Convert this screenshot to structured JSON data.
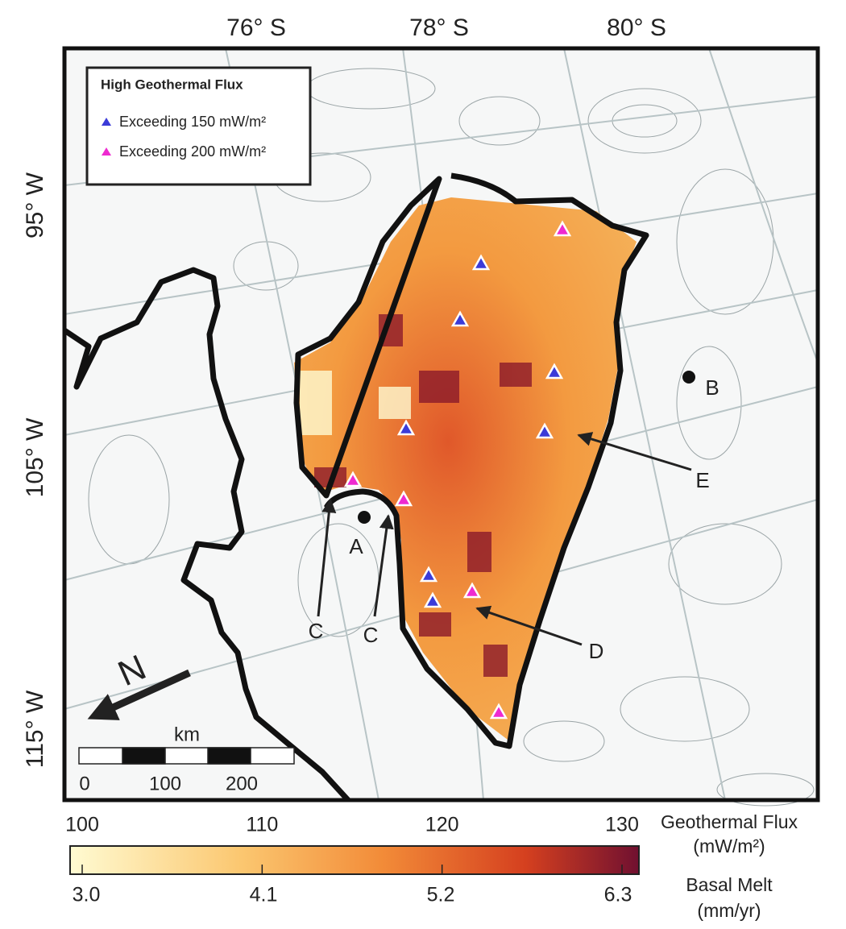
{
  "graticule": {
    "latitudes": [
      "76° S",
      "78° S",
      "80° S"
    ],
    "longitudes": [
      "95° W",
      "105° W",
      "115° W"
    ]
  },
  "legend": {
    "title": "High Geothermal Flux",
    "items": [
      "Exceeding 150 mW/m²",
      "Exceeding 200 mW/m²"
    ]
  },
  "labels": [
    "A",
    "B",
    "C",
    "C",
    "D",
    "E"
  ],
  "north": "N",
  "scale_bar": {
    "unit": "km",
    "ticks": [
      "0",
      "100",
      "200"
    ]
  },
  "colorbar": {
    "flux_ticks": [
      "100",
      "110",
      "120",
      "130"
    ],
    "flux_title": "Geothermal Flux",
    "flux_unit": "(mW/m²)",
    "melt_ticks": [
      "3.0",
      "4.1",
      "5.2",
      "6.3"
    ],
    "melt_title": "Basal Melt",
    "melt_unit": "(mm/yr)"
  }
}
